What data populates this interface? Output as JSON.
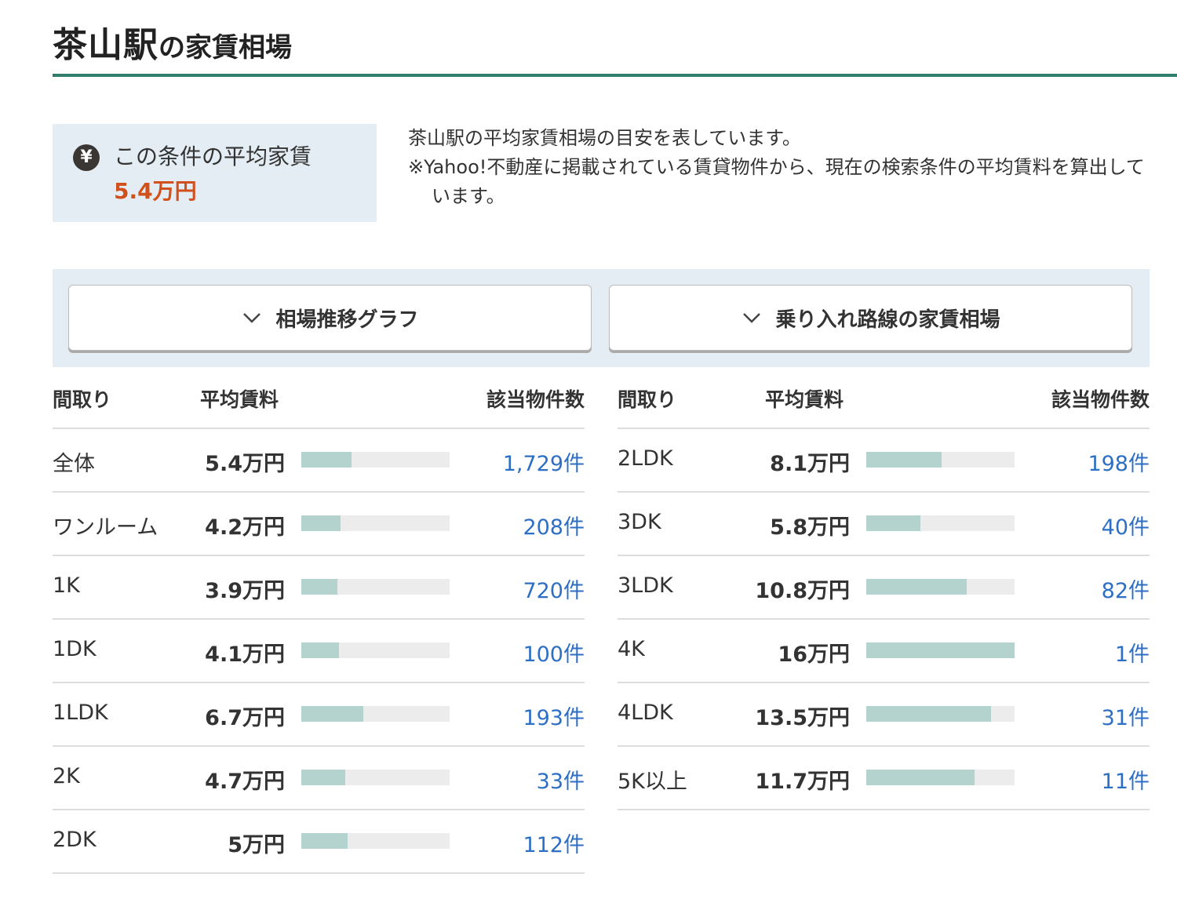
{
  "header": {
    "station": "茶山駅",
    "suffix": "の家賃相場"
  },
  "summary": {
    "icon": "yen-icon",
    "icon_glyph": "¥",
    "label": "この条件の平均家賃",
    "value": "5.4万円",
    "value_color": "#d2501c"
  },
  "description": {
    "line1": "茶山駅の平均家賃相場の目安を表しています。",
    "note": "※Yahoo!不動産に掲載されている賃貸物件から、現在の検索条件の平均賃料を算出しています。"
  },
  "buttons": {
    "trend_graph": "相場推移グラフ",
    "line_rent": "乗り入れ路線の家賃相場"
  },
  "table_headers": {
    "layout": "間取り",
    "avg_rent": "平均賃料",
    "count": "該当物件数"
  },
  "accent_color": "#2f7d6d",
  "bar_scale_max_man_yen": 16,
  "rows_left": [
    {
      "layout": "全体",
      "rent": "5.4万円",
      "rent_value": 5.4,
      "count": "1,729件"
    },
    {
      "layout": "ワンルーム",
      "rent": "4.2万円",
      "rent_value": 4.2,
      "count": "208件"
    },
    {
      "layout": "1K",
      "rent": "3.9万円",
      "rent_value": 3.9,
      "count": "720件"
    },
    {
      "layout": "1DK",
      "rent": "4.1万円",
      "rent_value": 4.1,
      "count": "100件"
    },
    {
      "layout": "1LDK",
      "rent": "6.7万円",
      "rent_value": 6.7,
      "count": "193件"
    },
    {
      "layout": "2K",
      "rent": "4.7万円",
      "rent_value": 4.7,
      "count": "33件"
    },
    {
      "layout": "2DK",
      "rent": "5万円",
      "rent_value": 5.0,
      "count": "112件"
    }
  ],
  "rows_right": [
    {
      "layout": "2LDK",
      "rent": "8.1万円",
      "rent_value": 8.1,
      "count": "198件"
    },
    {
      "layout": "3DK",
      "rent": "5.8万円",
      "rent_value": 5.8,
      "count": "40件"
    },
    {
      "layout": "3LDK",
      "rent": "10.8万円",
      "rent_value": 10.8,
      "count": "82件"
    },
    {
      "layout": "4K",
      "rent": "16万円",
      "rent_value": 16,
      "count": "1件"
    },
    {
      "layout": "4LDK",
      "rent": "13.5万円",
      "rent_value": 13.5,
      "count": "31件"
    },
    {
      "layout": "5K以上",
      "rent": "11.7万円",
      "rent_value": 11.7,
      "count": "11件"
    }
  ]
}
